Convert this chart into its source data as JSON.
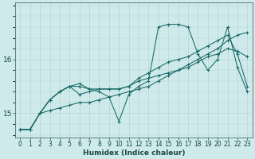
{
  "xlabel": "Humidex (Indice chaleur)",
  "background_color": "#ceeaea",
  "grid_color": "#b8d4d4",
  "line_color": "#1a6868",
  "x_ticks": [
    0,
    1,
    2,
    3,
    4,
    5,
    6,
    7,
    8,
    9,
    10,
    11,
    12,
    13,
    14,
    15,
    16,
    17,
    18,
    19,
    20,
    21,
    22,
    23
  ],
  "y_ticks": [
    15,
    16
  ],
  "xlim": [
    -0.5,
    23.5
  ],
  "ylim": [
    14.55,
    17.05
  ],
  "series": [
    [
      14.7,
      14.7,
      15.0,
      15.05,
      15.1,
      15.15,
      15.2,
      15.2,
      15.25,
      15.3,
      15.35,
      15.4,
      15.45,
      15.5,
      15.6,
      15.7,
      15.8,
      15.9,
      16.0,
      16.1,
      16.2,
      16.35,
      16.45,
      16.5
    ],
    [
      14.7,
      14.7,
      15.0,
      15.25,
      15.4,
      15.5,
      15.5,
      15.45,
      15.45,
      15.45,
      15.45,
      15.5,
      15.6,
      15.65,
      15.7,
      15.75,
      15.8,
      15.85,
      15.95,
      16.05,
      16.1,
      16.2,
      16.15,
      16.05
    ],
    [
      14.7,
      14.7,
      15.0,
      15.25,
      15.4,
      15.5,
      15.55,
      15.45,
      15.4,
      15.3,
      14.85,
      15.35,
      15.5,
      15.6,
      16.6,
      16.65,
      16.65,
      16.6,
      16.1,
      15.8,
      16.0,
      16.6,
      15.85,
      15.4
    ],
    [
      14.7,
      14.7,
      15.0,
      15.25,
      15.4,
      15.5,
      15.35,
      15.4,
      15.45,
      15.45,
      15.45,
      15.5,
      15.65,
      15.75,
      15.85,
      15.95,
      16.0,
      16.05,
      16.15,
      16.25,
      16.35,
      16.45,
      16.1,
      15.5
    ]
  ],
  "tick_fontsize": 5.5,
  "xlabel_fontsize": 6.5
}
